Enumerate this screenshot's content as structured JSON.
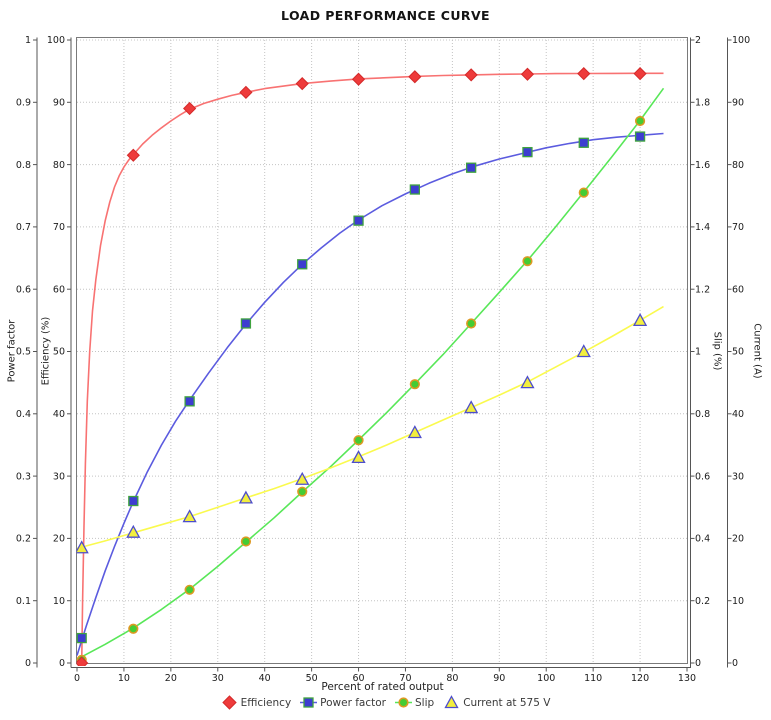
{
  "title": "LOAD PERFORMANCE CURVE",
  "chart_data": {
    "type": "line",
    "title": "LOAD PERFORMANCE CURVE",
    "grid": true,
    "legend_position": "bottom",
    "x_axis": {
      "label": "Percent of rated output",
      "min": 0,
      "max": 130,
      "tick_step": 10
    },
    "y_axes": [
      {
        "id": "power_factor",
        "label": "Power factor",
        "side": "left",
        "min": 0,
        "max": 1,
        "tick_step": 0.1
      },
      {
        "id": "efficiency",
        "label": "Efficiency (%)",
        "side": "left",
        "min": 0,
        "max": 100,
        "tick_step": 10
      },
      {
        "id": "slip",
        "label": "Slip (%)",
        "side": "right",
        "min": 0,
        "max": 2,
        "tick_step": 0.2
      },
      {
        "id": "current",
        "label": "Current (A)",
        "side": "right",
        "min": 0,
        "max": 100,
        "tick_step": 10
      }
    ],
    "x": [
      1,
      12,
      24,
      36,
      48,
      60,
      72,
      84,
      96,
      108,
      120
    ],
    "series": [
      {
        "name": "Efficiency",
        "axis": "efficiency",
        "marker": "diamond",
        "line_color": "#f87272",
        "marker_fill": "#ee3b3b",
        "marker_stroke": "#d42a2a",
        "values": [
          0,
          81.5,
          89,
          91.6,
          93,
          93.7,
          94.1,
          94.4,
          94.5,
          94.6,
          94.6
        ],
        "curve": [
          [
            1,
            0
          ],
          [
            1.2,
            10
          ],
          [
            1.5,
            22
          ],
          [
            1.8,
            32
          ],
          [
            2.2,
            42
          ],
          [
            2.7,
            50
          ],
          [
            3.3,
            56.5
          ],
          [
            4,
            61.5
          ],
          [
            5,
            67
          ],
          [
            6,
            71
          ],
          [
            7,
            74
          ],
          [
            8,
            76.4
          ],
          [
            9,
            78.2
          ],
          [
            10,
            79.6
          ],
          [
            11,
            80.7
          ],
          [
            12,
            81.6
          ],
          [
            14,
            83.3
          ],
          [
            16,
            84.7
          ],
          [
            18,
            85.9
          ],
          [
            20,
            87
          ],
          [
            22,
            88
          ],
          [
            24,
            88.9
          ],
          [
            27,
            89.8
          ],
          [
            30,
            90.5
          ],
          [
            33,
            91.1
          ],
          [
            36,
            91.6
          ],
          [
            40,
            92.2
          ],
          [
            44,
            92.6
          ],
          [
            48,
            93
          ],
          [
            54,
            93.4
          ],
          [
            60,
            93.75
          ],
          [
            66,
            93.95
          ],
          [
            72,
            94.15
          ],
          [
            78,
            94.3
          ],
          [
            84,
            94.4
          ],
          [
            90,
            94.5
          ],
          [
            96,
            94.55
          ],
          [
            102,
            94.6
          ],
          [
            108,
            94.62
          ],
          [
            114,
            94.64
          ],
          [
            120,
            94.65
          ],
          [
            125,
            94.65
          ]
        ]
      },
      {
        "name": "Power factor",
        "axis": "power_factor",
        "marker": "square",
        "line_color": "#5b5bdf",
        "marker_fill": "#3d3dd0",
        "marker_stroke": "#3fa33f",
        "values": [
          0.04,
          0.26,
          0.42,
          0.545,
          0.64,
          0.71,
          0.76,
          0.795,
          0.82,
          0.835,
          0.845
        ],
        "curve": [
          [
            0,
            0.012
          ],
          [
            2,
            0.06
          ],
          [
            4,
            0.105
          ],
          [
            6,
            0.148
          ],
          [
            8,
            0.187
          ],
          [
            10,
            0.224
          ],
          [
            12,
            0.259
          ],
          [
            15,
            0.307
          ],
          [
            18,
            0.35
          ],
          [
            21,
            0.388
          ],
          [
            24,
            0.422
          ],
          [
            28,
            0.465
          ],
          [
            32,
            0.506
          ],
          [
            36,
            0.544
          ],
          [
            40,
            0.579
          ],
          [
            44,
            0.611
          ],
          [
            48,
            0.64
          ],
          [
            52,
            0.666
          ],
          [
            56,
            0.69
          ],
          [
            60,
            0.711
          ],
          [
            65,
            0.734
          ],
          [
            70,
            0.753
          ],
          [
            75,
            0.77
          ],
          [
            80,
            0.785
          ],
          [
            85,
            0.798
          ],
          [
            90,
            0.809
          ],
          [
            95,
            0.818
          ],
          [
            100,
            0.827
          ],
          [
            105,
            0.834
          ],
          [
            110,
            0.84
          ],
          [
            115,
            0.844
          ],
          [
            120,
            0.847
          ],
          [
            125,
            0.85
          ]
        ]
      },
      {
        "name": "Slip",
        "axis": "slip",
        "marker": "circle",
        "line_color": "#58e758",
        "marker_fill": "#44cc33",
        "marker_stroke": "#dd9922",
        "values": [
          0.01,
          0.11,
          0.235,
          0.39,
          0.55,
          0.715,
          0.895,
          1.09,
          1.29,
          1.51,
          1.74
        ],
        "curve": [
          [
            0,
            0.012
          ],
          [
            6,
            0.06
          ],
          [
            12,
            0.112
          ],
          [
            18,
            0.172
          ],
          [
            24,
            0.237
          ],
          [
            30,
            0.31
          ],
          [
            36,
            0.388
          ],
          [
            42,
            0.466
          ],
          [
            48,
            0.549
          ],
          [
            54,
            0.63
          ],
          [
            60,
            0.716
          ],
          [
            66,
            0.804
          ],
          [
            72,
            0.896
          ],
          [
            78,
            0.99
          ],
          [
            84,
            1.09
          ],
          [
            90,
            1.19
          ],
          [
            96,
            1.292
          ],
          [
            102,
            1.4
          ],
          [
            108,
            1.512
          ],
          [
            114,
            1.625
          ],
          [
            120,
            1.742
          ],
          [
            125,
            1.845
          ]
        ]
      },
      {
        "name": "Current at 575 V",
        "axis": "current",
        "marker": "triangle",
        "line_color": "#fafa4e",
        "marker_fill": "#f2ee3e",
        "marker_stroke": "#4d4dcc",
        "values": [
          18.5,
          21,
          23.5,
          26.5,
          29.5,
          33,
          37,
          41,
          45,
          50,
          55
        ],
        "curve": [
          [
            0,
            18.4
          ],
          [
            6,
            19.6
          ],
          [
            12,
            20.9
          ],
          [
            18,
            22.2
          ],
          [
            24,
            23.5
          ],
          [
            30,
            25
          ],
          [
            36,
            26.5
          ],
          [
            42,
            28
          ],
          [
            48,
            29.6
          ],
          [
            54,
            31.3
          ],
          [
            60,
            33.1
          ],
          [
            66,
            35
          ],
          [
            72,
            37
          ],
          [
            78,
            39
          ],
          [
            84,
            41
          ],
          [
            90,
            43
          ],
          [
            96,
            45.1
          ],
          [
            102,
            47.5
          ],
          [
            108,
            49.9
          ],
          [
            114,
            52.4
          ],
          [
            120,
            55
          ],
          [
            125,
            57.2
          ]
        ]
      }
    ]
  },
  "colors": {
    "grid": "#c4c4c4",
    "frame": "#7a7a7a",
    "axis": "#555555",
    "tick_label": "#1c1c1c"
  }
}
